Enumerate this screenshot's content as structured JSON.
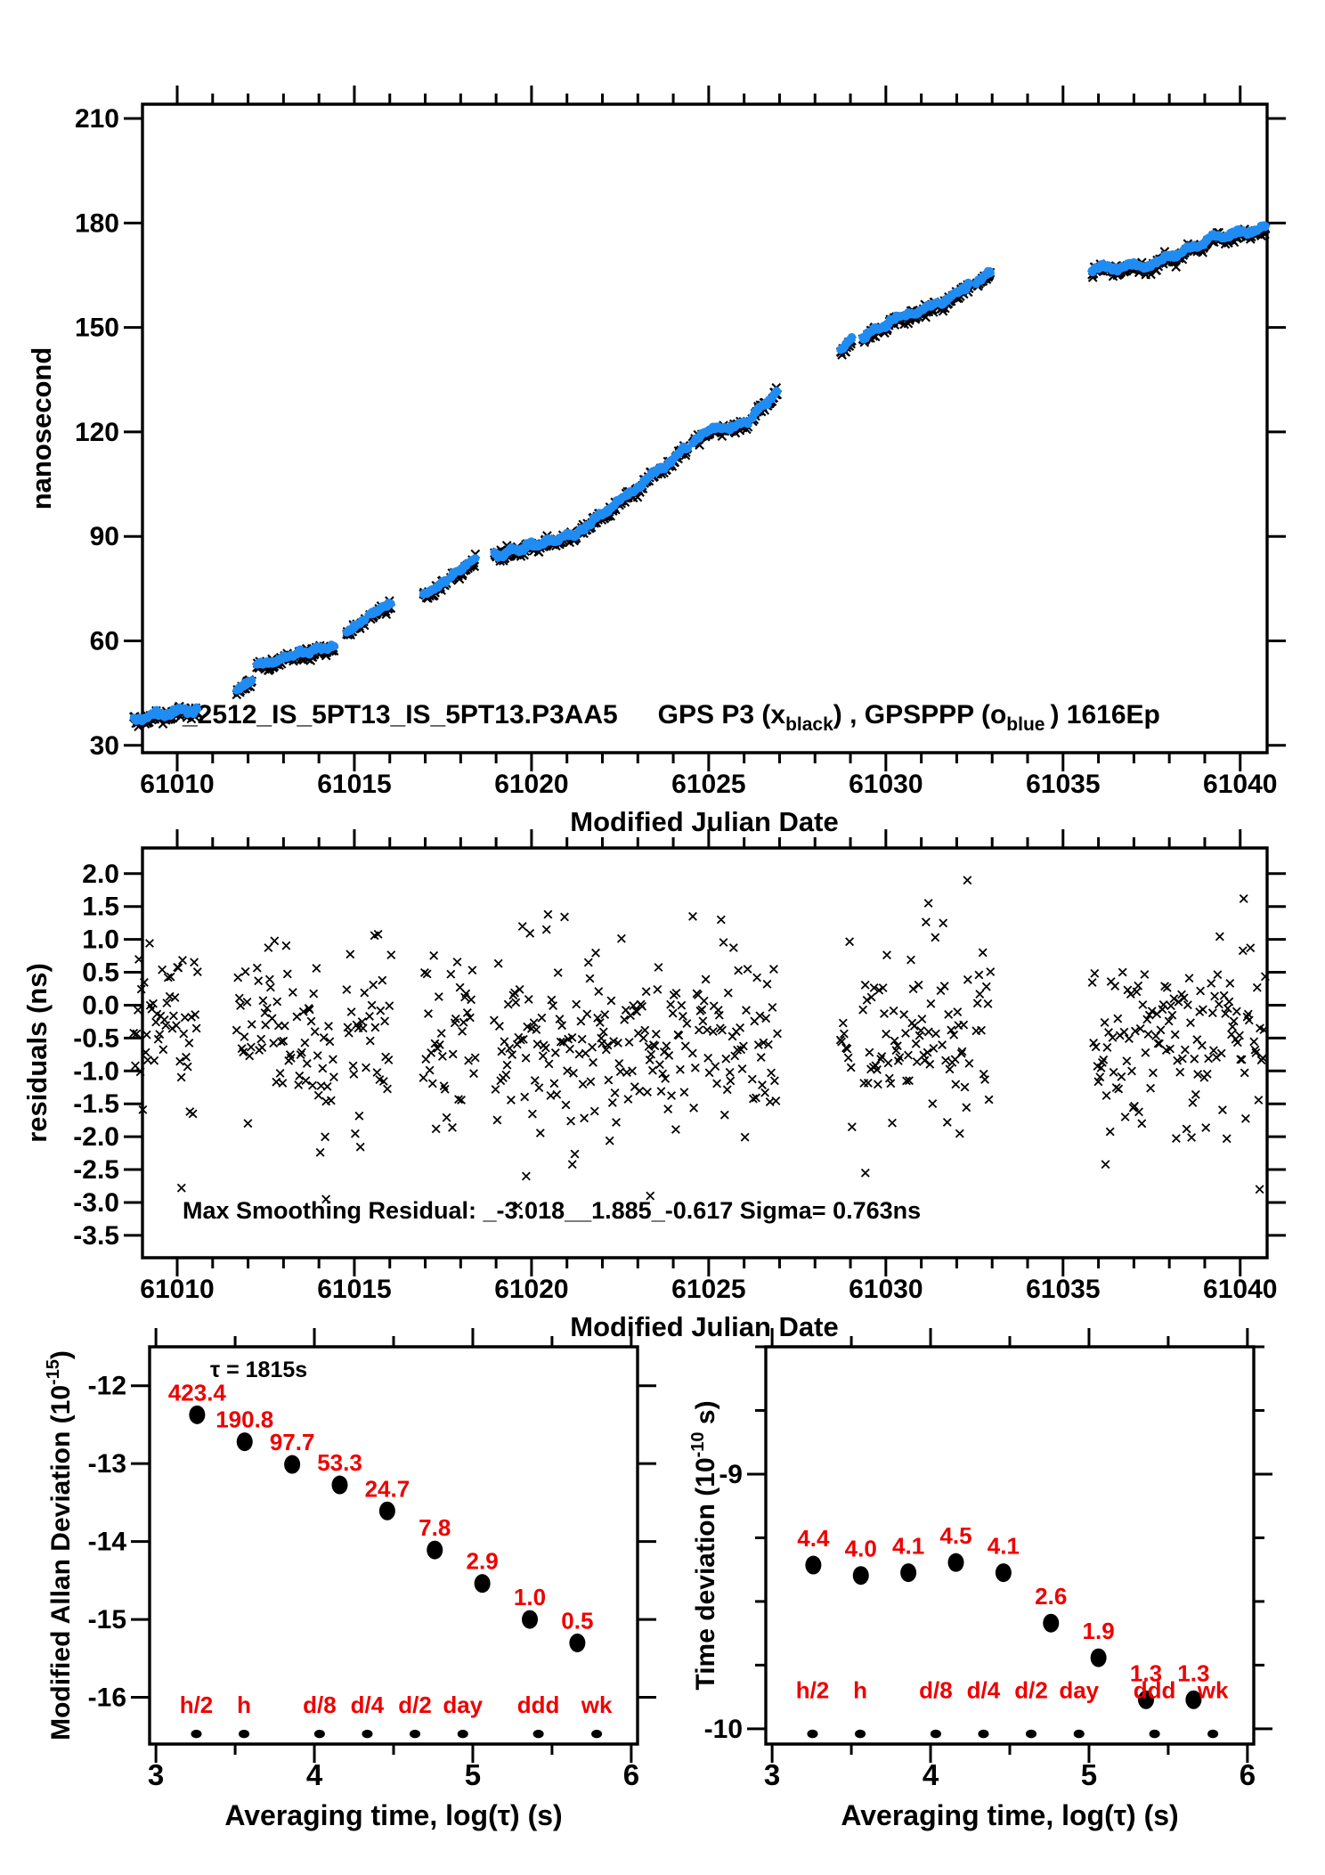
{
  "colors": {
    "black": "#000000",
    "blue": "#1f8cf4",
    "red": "#ee0000",
    "bg": "#ffffff"
  },
  "chart_data": [
    {
      "id": "gps-time-comparison",
      "type": "scatter",
      "title_parts": [
        {
          "t": "_2512_IS_5PT13_IS_5PT13.P3AA5"
        },
        {
          "t": "GPS P3 (x",
          "gap": 45
        },
        {
          "t": "black",
          "sub": true
        },
        {
          "t": ") ,  GPSPPP (o"
        },
        {
          "t": "blue",
          "sub": true
        },
        {
          "t": ")  1616Ep",
          "gap": 6
        }
      ],
      "xlabel": "Modified Julian Date",
      "ylabel": "nanosecond",
      "xlim": [
        61009.02,
        61040.76
      ],
      "ylim": [
        27.9,
        214.1
      ],
      "xticks": [
        {
          "v": 61010,
          "t": "61010"
        },
        {
          "v": 61015,
          "t": "61015"
        },
        {
          "v": 61020,
          "t": "61020"
        },
        {
          "v": 61025,
          "t": "61025"
        },
        {
          "v": 61030,
          "t": "61030"
        },
        {
          "v": 61035,
          "t": "61035"
        },
        {
          "v": 61040,
          "t": "61040"
        }
      ],
      "xminor_step": 1,
      "yticks": [
        {
          "v": 30,
          "t": "30"
        },
        {
          "v": 60,
          "t": "60"
        },
        {
          "v": 90,
          "t": "90"
        },
        {
          "v": 120,
          "t": "120"
        },
        {
          "v": 150,
          "t": "150"
        },
        {
          "v": 180,
          "t": "180"
        },
        {
          "v": 210,
          "t": "210"
        }
      ],
      "series": [
        {
          "name": "GPS P3",
          "marker": "x",
          "color": "black"
        },
        {
          "name": "GPSPPP",
          "marker": "o",
          "color": "blue"
        }
      ],
      "segments": [
        [
          61008.78,
          61010.58,
          37.2,
          40.2,
          1.2
        ],
        [
          61011.68,
          61012.12,
          45.6,
          48.0,
          0.4
        ],
        [
          61012.25,
          61013.28,
          52.3,
          55.2,
          0.7
        ],
        [
          61013.38,
          61014.45,
          55.8,
          58.2,
          0.8
        ],
        [
          61014.78,
          61015.32,
          61.8,
          66.0,
          0.5
        ],
        [
          61015.42,
          61016.05,
          67.2,
          70.2,
          0.5
        ],
        [
          61016.95,
          61017.62,
          72.8,
          76.8,
          0.5
        ],
        [
          61017.72,
          61018.42,
          78.0,
          83.2,
          0.5
        ],
        [
          61018.95,
          61021.28,
          84.0,
          90.2,
          1.1
        ],
        [
          61021.35,
          61022.55,
          91.0,
          100.2,
          0.8
        ],
        [
          61022.62,
          61024.42,
          100.8,
          115.2,
          1.0
        ],
        [
          61024.55,
          61025.05,
          116.5,
          120.5,
          0.5
        ],
        [
          61025.12,
          61026.12,
          120.2,
          122.0,
          0.7
        ],
        [
          61026.22,
          61026.95,
          124.0,
          131.2,
          0.6
        ],
        [
          61028.72,
          61029.05,
          143.2,
          146.8,
          0.4
        ],
        [
          61029.35,
          61030.42,
          146.8,
          152.6,
          0.8
        ],
        [
          61030.52,
          61031.45,
          152.6,
          156.4,
          0.7
        ],
        [
          61031.55,
          61032.35,
          156.2,
          162.0,
          0.7
        ],
        [
          61032.55,
          61032.95,
          162.5,
          165.4,
          0.4
        ],
        [
          61035.82,
          61037.55,
          166.3,
          167.6,
          1.1
        ],
        [
          61037.62,
          61039.12,
          168.2,
          174.4,
          0.9
        ],
        [
          61039.18,
          61040.32,
          175.2,
          177.2,
          1.0
        ],
        [
          61040.38,
          61040.72,
          177.0,
          178.6,
          0.5
        ]
      ],
      "noise": {
        "seed": 1234567,
        "step_days": 0.021,
        "black_sigma": 0.75,
        "black_offset": -0.15,
        "blue_sigma": 0.22,
        "blue_offset": 0.5
      }
    },
    {
      "id": "residuals",
      "type": "scatter",
      "xlabel": "Modified Julian Date",
      "ylabel": "residuals (ns)",
      "xlim": [
        61009.02,
        61040.76
      ],
      "ylim": [
        -3.84,
        2.39
      ],
      "xticks": [
        {
          "v": 61010,
          "t": "61010"
        },
        {
          "v": 61015,
          "t": "61015"
        },
        {
          "v": 61020,
          "t": "61020"
        },
        {
          "v": 61025,
          "t": "61025"
        },
        {
          "v": 61030,
          "t": "61030"
        },
        {
          "v": 61035,
          "t": "61035"
        },
        {
          "v": 61040,
          "t": "61040"
        }
      ],
      "xminor_step": 1,
      "yticks": [
        {
          "v": 2.0,
          "t": "2.0"
        },
        {
          "v": 1.5,
          "t": "1.5"
        },
        {
          "v": 1.0,
          "t": "1.0"
        },
        {
          "v": 0.5,
          "t": "0.5"
        },
        {
          "v": 0.0,
          "t": "0.0"
        },
        {
          "v": -0.5,
          "t": "-0.5"
        },
        {
          "v": -1.0,
          "t": "-1.0"
        },
        {
          "v": -1.5,
          "t": "-1.5"
        },
        {
          "v": -2.0,
          "t": "-2.0"
        },
        {
          "v": -2.5,
          "t": "-2.5"
        },
        {
          "v": -3.0,
          "t": "-3.0"
        },
        {
          "v": -3.5,
          "t": "-3.5"
        }
      ],
      "annotation": "Max Smoothing Residual: _-3.018__1.885_-0.617  Sigma= 0.763ns",
      "stats": {
        "sigma_ns": 0.763,
        "max_residuals": [
          -3.018,
          1.885,
          -0.617
        ]
      },
      "noise": {
        "seed": 424242,
        "step_days": 0.036,
        "mean": -0.55,
        "sigma": 0.72,
        "clip_low": -2.28,
        "clip_high": 1.42
      },
      "outliers": [
        [
          61010.12,
          -2.78
        ],
        [
          61014.2,
          -2.95
        ],
        [
          61019.62,
          -3.05
        ],
        [
          61019.85,
          -2.6
        ],
        [
          61021.15,
          -2.42
        ],
        [
          61023.35,
          -2.9
        ],
        [
          61024.55,
          1.35
        ],
        [
          61025.35,
          1.3
        ],
        [
          61029.42,
          -2.55
        ],
        [
          61031.2,
          1.55
        ],
        [
          61032.3,
          1.9
        ],
        [
          61036.2,
          -2.42
        ],
        [
          61040.1,
          1.62
        ],
        [
          61040.55,
          -2.8
        ]
      ]
    },
    {
      "id": "modified-allan-deviation",
      "type": "scatter",
      "ylabel_parts": [
        {
          "t": "Modified Allan Deviation (10"
        },
        {
          "t": "-15",
          "sup": true
        },
        {
          "t": ")"
        }
      ],
      "xlabel": "Averaging time, log(τ) (s)",
      "xlim": [
        2.96,
        6.04
      ],
      "ylim": [
        -16.6,
        -11.5
      ],
      "xticks": [
        {
          "v": 3,
          "t": "3"
        },
        {
          "v": 4,
          "t": "4"
        },
        {
          "v": 5,
          "t": "5"
        },
        {
          "v": 6,
          "t": "6"
        }
      ],
      "xminor": [
        3.5,
        4.5,
        5.5
      ],
      "yticks": [
        {
          "v": -12,
          "t": "-12"
        },
        {
          "v": -13,
          "t": "-13"
        },
        {
          "v": -14,
          "t": "-14"
        },
        {
          "v": -15,
          "t": "-15"
        },
        {
          "v": -16,
          "t": "-16"
        }
      ],
      "annotation": "τ = 1815s",
      "points": [
        {
          "x": 3.26,
          "y": -12.373,
          "label": "423.4"
        },
        {
          "x": 3.56,
          "y": -12.719,
          "label": "190.8"
        },
        {
          "x": 3.86,
          "y": -13.01,
          "label": "97.7"
        },
        {
          "x": 4.16,
          "y": -13.273,
          "label": "53.3"
        },
        {
          "x": 4.46,
          "y": -13.607,
          "label": "24.7"
        },
        {
          "x": 4.76,
          "y": -14.108,
          "label": "7.8"
        },
        {
          "x": 5.06,
          "y": -14.538,
          "label": "2.9"
        },
        {
          "x": 5.36,
          "y": -15.0,
          "label": "1.0"
        },
        {
          "x": 5.66,
          "y": -15.301,
          "label": "0.5"
        }
      ],
      "tau_marks": {
        "y_dot": -16.47,
        "y_label": -16.2,
        "items": [
          {
            "x": 3.255,
            "label": "h/2"
          },
          {
            "x": 3.556,
            "label": "h"
          },
          {
            "x": 4.033,
            "label": "d/8"
          },
          {
            "x": 4.334,
            "label": "d/4"
          },
          {
            "x": 4.635,
            "label": "d/2"
          },
          {
            "x": 4.937,
            "label": "day"
          },
          {
            "x": 5.414,
            "label": "ddd"
          },
          {
            "x": 5.782,
            "label": "wk"
          }
        ]
      }
    },
    {
      "id": "time-deviation",
      "type": "scatter",
      "ylabel_parts": [
        {
          "t": "Time deviation (10"
        },
        {
          "t": "-10",
          "sup": true
        },
        {
          "t": " s)"
        }
      ],
      "xlabel": "Averaging time, log(τ) (s)",
      "xlim": [
        2.96,
        6.04
      ],
      "ylim": [
        -10.06,
        -8.5
      ],
      "xticks": [
        {
          "v": 3,
          "t": "3"
        },
        {
          "v": 4,
          "t": "4"
        },
        {
          "v": 5,
          "t": "5"
        },
        {
          "v": 6,
          "t": "6"
        }
      ],
      "xminor": [
        3.5,
        4.5,
        5.5
      ],
      "yticks": [
        {
          "v": -9,
          "t": "-9"
        },
        {
          "v": -10,
          "t": "-10"
        }
      ],
      "yminor_step": 0.25,
      "points": [
        {
          "x": 3.26,
          "y": -9.357,
          "label": "4.4"
        },
        {
          "x": 3.56,
          "y": -9.398,
          "label": "4.0"
        },
        {
          "x": 3.86,
          "y": -9.387,
          "label": "4.1"
        },
        {
          "x": 4.16,
          "y": -9.347,
          "label": "4.5"
        },
        {
          "x": 4.46,
          "y": -9.387,
          "label": "4.1"
        },
        {
          "x": 4.76,
          "y": -9.585,
          "label": "2.6"
        },
        {
          "x": 5.06,
          "y": -9.721,
          "label": "1.9"
        },
        {
          "x": 5.36,
          "y": -9.886,
          "label": "1.3"
        },
        {
          "x": 5.66,
          "y": -9.886,
          "label": "1.3"
        }
      ],
      "tau_marks": {
        "y_dot": -10.02,
        "y_label": -9.88,
        "items": [
          {
            "x": 3.255,
            "label": "h/2"
          },
          {
            "x": 3.556,
            "label": "h"
          },
          {
            "x": 4.033,
            "label": "d/8"
          },
          {
            "x": 4.334,
            "label": "d/4"
          },
          {
            "x": 4.635,
            "label": "d/2"
          },
          {
            "x": 4.937,
            "label": "day"
          },
          {
            "x": 5.414,
            "label": "ddd"
          },
          {
            "x": 5.782,
            "label": "wk"
          }
        ]
      }
    }
  ]
}
